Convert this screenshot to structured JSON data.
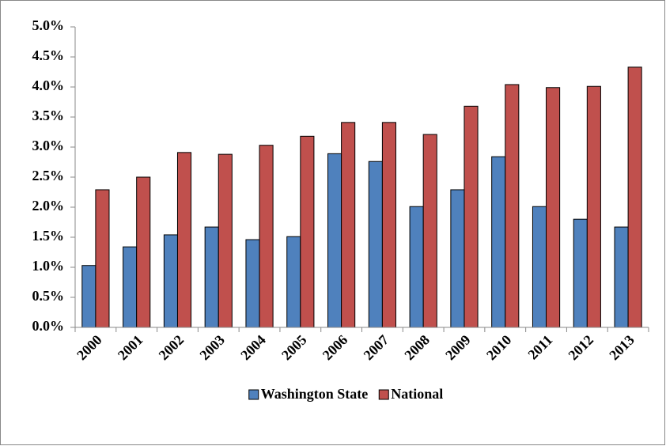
{
  "chart_data": {
    "type": "bar",
    "categories": [
      "2000",
      "2001",
      "2002",
      "2003",
      "2004",
      "2005",
      "2006",
      "2007",
      "2008",
      "2009",
      "2010",
      "2011",
      "2012",
      "2013"
    ],
    "series": [
      {
        "name": "Washington State",
        "color": "#4f81bd",
        "values": [
          1.03,
          1.34,
          1.54,
          1.67,
          1.46,
          1.51,
          2.89,
          2.76,
          2.01,
          2.29,
          2.84,
          2.01,
          1.8,
          1.67
        ]
      },
      {
        "name": "National",
        "color": "#c0504d",
        "values": [
          2.29,
          2.5,
          2.91,
          2.88,
          3.03,
          3.18,
          3.41,
          3.41,
          3.21,
          3.68,
          4.04,
          3.99,
          4.01,
          4.33
        ]
      }
    ],
    "ylim": [
      0,
      5
    ],
    "yticks": [
      {
        "value": 0,
        "label": "0.0%"
      },
      {
        "value": 0.5,
        "label": "0.5%"
      },
      {
        "value": 1,
        "label": "1.0%"
      },
      {
        "value": 1.5,
        "label": "1.5%"
      },
      {
        "value": 2,
        "label": "2.0%"
      },
      {
        "value": 2.5,
        "label": "2.5%"
      },
      {
        "value": 3,
        "label": "3.0%"
      },
      {
        "value": 3.5,
        "label": "3.5%"
      },
      {
        "value": 4,
        "label": "4.0%"
      },
      {
        "value": 4.5,
        "label": "4.5%"
      },
      {
        "value": 5,
        "label": "5.0%"
      }
    ],
    "grid": false,
    "legend": "bottom"
  }
}
